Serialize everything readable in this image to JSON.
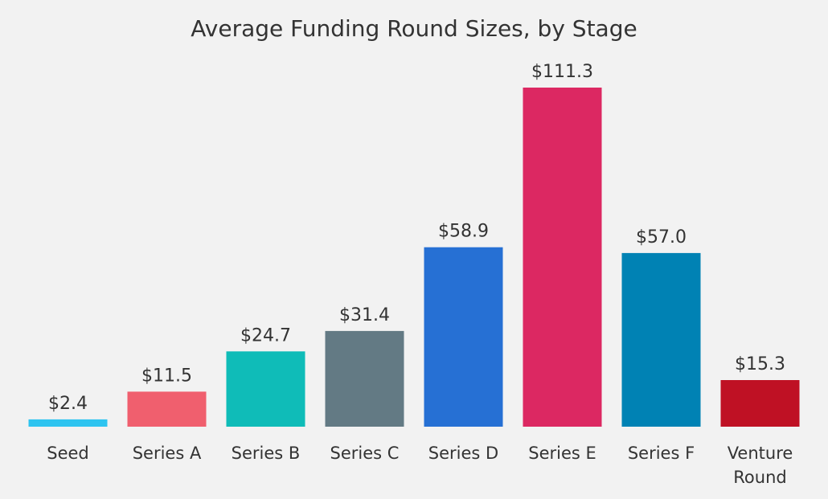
{
  "chart_data": {
    "type": "bar",
    "title": "Average Funding Round Sizes, by Stage",
    "categories": [
      [
        "Seed"
      ],
      [
        "Series A"
      ],
      [
        "Series B"
      ],
      [
        "Series C"
      ],
      [
        "Series D"
      ],
      [
        "Series E"
      ],
      [
        "Series F"
      ],
      [
        "Venture",
        "Round"
      ]
    ],
    "values": [
      2.4,
      11.5,
      24.7,
      31.4,
      58.9,
      111.3,
      57.0,
      15.3
    ],
    "value_labels": [
      "$2.4",
      "$11.5",
      "$24.7",
      "$31.4",
      "$58.9",
      "$111.3",
      "$57.0",
      "$15.3"
    ],
    "colors": [
      "#2ec4f0",
      "#f05f6e",
      "#0fbcb8",
      "#637a84",
      "#2670d4",
      "#dc2862",
      "#0082b4",
      "#bf1124"
    ],
    "xlabel": "",
    "ylabel": "",
    "ylim": [
      0,
      111.3
    ],
    "grid": false,
    "legend": "none"
  }
}
